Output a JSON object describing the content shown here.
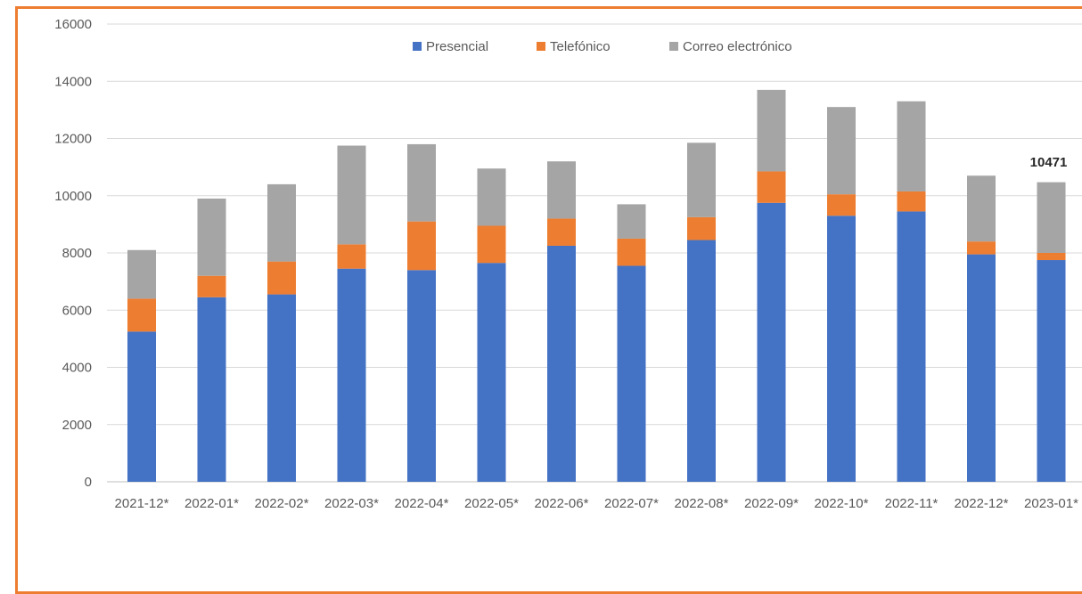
{
  "chart_data": {
    "type": "bar",
    "stacked": true,
    "title": "",
    "xlabel": "",
    "ylabel": "",
    "ylim": [
      0,
      16000
    ],
    "yticks": [
      0,
      2000,
      4000,
      6000,
      8000,
      10000,
      12000,
      14000,
      16000
    ],
    "grid": true,
    "legend_position": "top-center",
    "categories": [
      "2021-12*",
      "2022-01*",
      "2022-02*",
      "2022-03*",
      "2022-04*",
      "2022-05*",
      "2022-06*",
      "2022-07*",
      "2022-08*",
      "2022-09*",
      "2022-10*",
      "2022-11*",
      "2022-12*",
      "2023-01*"
    ],
    "series": [
      {
        "name": "Presencial",
        "color": "#4472C4",
        "values": [
          5250,
          6450,
          6550,
          7450,
          7400,
          7650,
          8250,
          7550,
          8450,
          9750,
          9300,
          9450,
          7950,
          7750
        ]
      },
      {
        "name": "Telefónico",
        "color": "#ED7D31",
        "values": [
          1150,
          750,
          1150,
          850,
          1700,
          1300,
          950,
          950,
          800,
          1100,
          750,
          700,
          450,
          250
        ]
      },
      {
        "name": "Correo electrónico",
        "color": "#A5A5A5",
        "values": [
          1700,
          2700,
          2700,
          3450,
          2700,
          2000,
          2000,
          1200,
          2600,
          2850,
          3050,
          3150,
          2300,
          2471
        ]
      }
    ],
    "annotations": [
      {
        "category": "2023-01*",
        "text": "10471"
      }
    ]
  }
}
